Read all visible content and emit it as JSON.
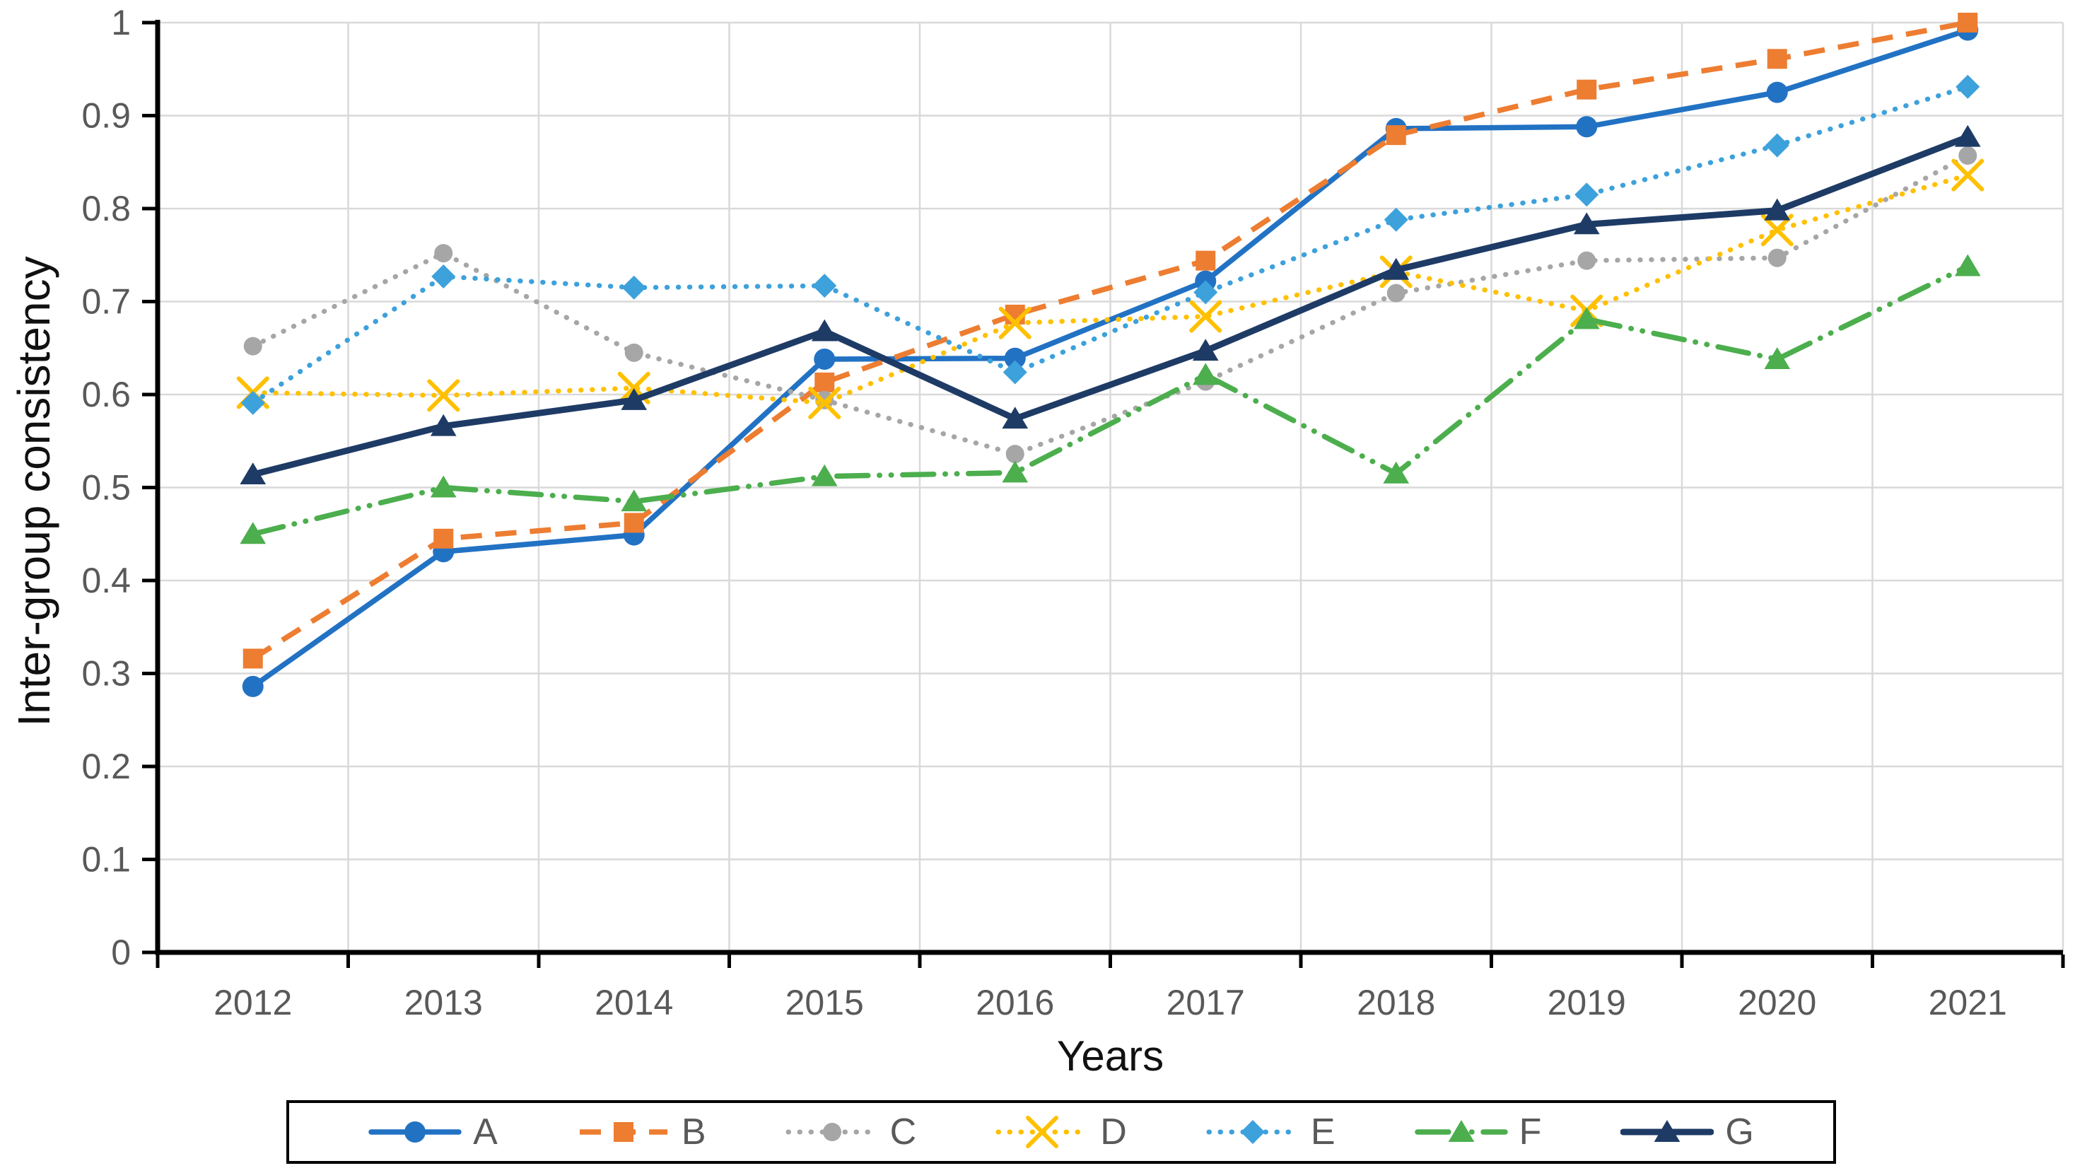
{
  "axes": {
    "x_title": "Years",
    "y_title": "Inter-group consistency",
    "y_tick_labels": [
      "0",
      "0.1",
      "0.2",
      "0.3",
      "0.4",
      "0.5",
      "0.6",
      "0.7",
      "0.8",
      "0.9",
      "1"
    ],
    "tick_label_color": "#595959",
    "title_color": "#111111",
    "gridline_color": "#D9D9D9",
    "axis_line_color": "#000000"
  },
  "legend": {
    "border_color": "#000000",
    "text_color": "#595959",
    "position": "bottom"
  },
  "chart_data": {
    "type": "line",
    "title": "",
    "xlabel": "Years",
    "ylabel": "Inter-group consistency",
    "x": [
      "2012",
      "2013",
      "2014",
      "2015",
      "2016",
      "2017",
      "2018",
      "2019",
      "2020",
      "2021"
    ],
    "ylim": [
      0,
      1
    ],
    "ytick_step": 0.1,
    "grid": "both",
    "legend_position": "bottom",
    "series": [
      {
        "name": "A",
        "color": "#2272C4",
        "line": "solid",
        "marker": "circle",
        "marker_size": 15,
        "line_width": 7.5,
        "values": [
          0.286,
          0.431,
          0.449,
          0.638,
          0.639,
          0.722,
          0.886,
          0.888,
          0.925,
          0.992
        ]
      },
      {
        "name": "B",
        "color": "#ED7D31",
        "line": "dash",
        "marker": "square",
        "marker_size": 14,
        "line_width": 7.5,
        "values": [
          0.316,
          0.445,
          0.462,
          0.613,
          0.686,
          0.744,
          0.879,
          0.928,
          0.961,
          1.0
        ]
      },
      {
        "name": "C",
        "color": "#A6A6A6",
        "line": "dot",
        "marker": "circle",
        "marker_size": 13,
        "line_width": 7,
        "values": [
          0.652,
          0.752,
          0.645,
          0.594,
          0.536,
          0.614,
          0.709,
          0.744,
          0.747,
          0.857
        ]
      },
      {
        "name": "D",
        "color": "#FFC000",
        "line": "dot",
        "marker": "x",
        "marker_size": 20,
        "line_width": 7,
        "values": [
          0.602,
          0.599,
          0.607,
          0.591,
          0.677,
          0.684,
          0.732,
          0.69,
          0.777,
          0.836
        ]
      },
      {
        "name": "E",
        "color": "#3DA1DB",
        "line": "dot",
        "marker": "diamond",
        "marker_size": 17,
        "line_width": 7,
        "values": [
          0.591,
          0.727,
          0.715,
          0.717,
          0.624,
          0.71,
          0.788,
          0.815,
          0.868,
          0.931
        ]
      },
      {
        "name": "F",
        "color": "#4CAE4D",
        "line": "dashdotdot",
        "marker": "triangle",
        "marker_size": 17,
        "line_width": 7.5,
        "values": [
          0.45,
          0.5,
          0.485,
          0.512,
          0.516,
          0.621,
          0.515,
          0.681,
          0.638,
          0.738
        ]
      },
      {
        "name": "G",
        "color": "#1E3B66",
        "line": "solid",
        "marker": "triangle",
        "marker_size": 17,
        "line_width": 9,
        "values": [
          0.514,
          0.566,
          0.594,
          0.668,
          0.574,
          0.647,
          0.734,
          0.783,
          0.798,
          0.877
        ]
      }
    ]
  }
}
